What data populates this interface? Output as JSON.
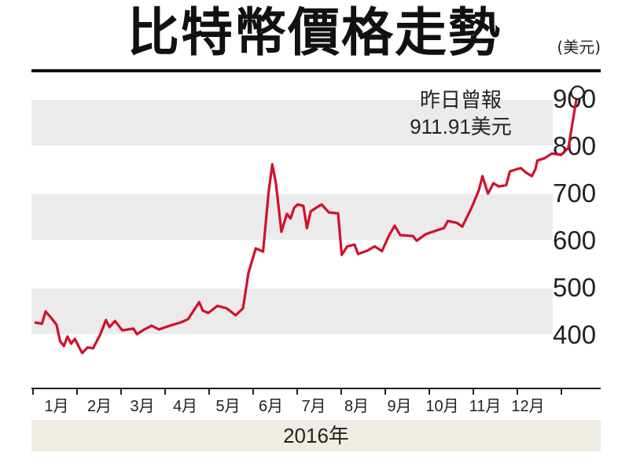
{
  "title": "比特幣價格走勢",
  "unit": "(美元)",
  "annotation": {
    "line1": "昨日曾報",
    "line2": "911.91美元"
  },
  "year_label": "2016年",
  "colors": {
    "line": "#d2102a",
    "band": "#ebebeb",
    "year_band": "#efece4"
  },
  "chart_data": {
    "type": "line",
    "title": "比特幣價格走勢",
    "xlabel": "2016年",
    "ylabel": "(美元)",
    "ylim": [
      330,
      920
    ],
    "yticks": [
      400,
      500,
      600,
      700,
      800,
      900
    ],
    "grid": "alternating horizontal bands",
    "months": [
      "1月",
      "2月",
      "3月",
      "4月",
      "5月",
      "6月",
      "7月",
      "8月",
      "9月",
      "10月",
      "11月",
      "12月"
    ],
    "x_unit": "month of 2016 (fractional)",
    "series": [
      {
        "values": [
          [
            0.0,
            425
          ],
          [
            0.2,
            422
          ],
          [
            0.3,
            448
          ],
          [
            0.45,
            435
          ],
          [
            0.6,
            420
          ],
          [
            0.7,
            385
          ],
          [
            0.8,
            375
          ],
          [
            0.9,
            395
          ],
          [
            1.0,
            380
          ],
          [
            1.1,
            390
          ],
          [
            1.2,
            375
          ],
          [
            1.3,
            360
          ],
          [
            1.45,
            372
          ],
          [
            1.6,
            370
          ],
          [
            1.8,
            400
          ],
          [
            1.95,
            430
          ],
          [
            2.05,
            415
          ],
          [
            2.2,
            428
          ],
          [
            2.4,
            408
          ],
          [
            2.7,
            412
          ],
          [
            2.8,
            400
          ],
          [
            3.0,
            410
          ],
          [
            3.2,
            418
          ],
          [
            3.4,
            410
          ],
          [
            3.7,
            418
          ],
          [
            4.0,
            425
          ],
          [
            4.2,
            432
          ],
          [
            4.5,
            468
          ],
          [
            4.6,
            450
          ],
          [
            4.75,
            445
          ],
          [
            5.0,
            460
          ],
          [
            5.25,
            455
          ],
          [
            5.5,
            440
          ],
          [
            5.7,
            455
          ],
          [
            5.85,
            530
          ],
          [
            6.05,
            582
          ],
          [
            6.25,
            575
          ],
          [
            6.4,
            700
          ],
          [
            6.5,
            760
          ],
          [
            6.6,
            720
          ],
          [
            6.75,
            617
          ],
          [
            6.9,
            655
          ],
          [
            7.0,
            645
          ],
          [
            7.1,
            668
          ],
          [
            7.2,
            675
          ],
          [
            7.35,
            672
          ],
          [
            7.45,
            625
          ],
          [
            7.55,
            660
          ],
          [
            7.7,
            668
          ],
          [
            7.85,
            675
          ],
          [
            8.05,
            658
          ],
          [
            8.3,
            656
          ],
          [
            8.4,
            568
          ],
          [
            8.55,
            586
          ],
          [
            8.75,
            590
          ],
          [
            8.85,
            570
          ],
          [
            9.1,
            577
          ],
          [
            9.3,
            586
          ],
          [
            9.5,
            576
          ],
          [
            9.7,
            610
          ],
          [
            9.85,
            630
          ],
          [
            10.0,
            610
          ],
          [
            10.35,
            608
          ],
          [
            10.45,
            598
          ],
          [
            10.7,
            612
          ],
          [
            11.0,
            620
          ],
          [
            11.2,
            625
          ],
          [
            11.3,
            640
          ],
          [
            11.55,
            636
          ],
          [
            11.7,
            628
          ],
          [
            11.95,
            668
          ],
          [
            12.15,
            705
          ],
          [
            12.25,
            735
          ],
          [
            12.4,
            698
          ],
          [
            12.55,
            720
          ],
          [
            12.7,
            713
          ],
          [
            12.9,
            716
          ],
          [
            13.0,
            745
          ],
          [
            13.2,
            750
          ],
          [
            13.3,
            752
          ],
          [
            13.45,
            742
          ],
          [
            13.6,
            735
          ],
          [
            13.7,
            750
          ],
          [
            13.75,
            768
          ],
          [
            13.95,
            773
          ],
          [
            14.15,
            783
          ],
          [
            14.4,
            780
          ],
          [
            14.6,
            795
          ],
          [
            14.85,
            911.91
          ]
        ]
      }
    ],
    "annotation": {
      "text": "昨日曾報 911.91美元",
      "value": 911.91,
      "marker": "hollow circle"
    }
  }
}
